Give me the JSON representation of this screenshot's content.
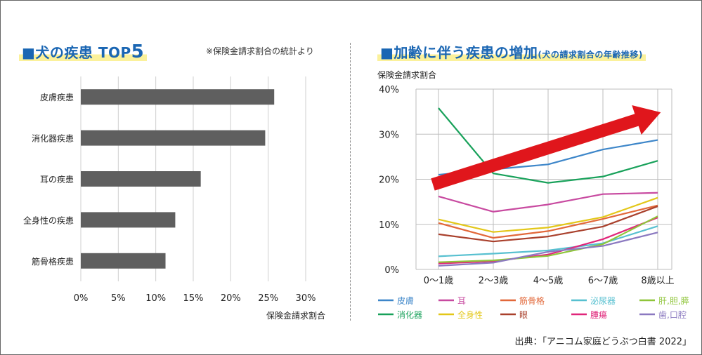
{
  "left_panel": {
    "title_prefix": "■犬の疾患 TOP",
    "title_rank": "5",
    "note": "※保険金請求割合の統計より"
  },
  "right_panel": {
    "title_main": "■加齢に伴う疾患の増加",
    "title_sub": "(犬の請求割合の年齢推移)"
  },
  "source": "出典：「アニコム家庭どうぶつ白書 2022」",
  "colors": {
    "title": "#1a66b3",
    "highlight": "#fbf19b",
    "bar": "#5f5f5f",
    "trend_arrow": "#e0161c"
  },
  "chart_data": [
    {
      "type": "bar",
      "orientation": "horizontal",
      "categories": [
        "皮膚疾患",
        "消化器疾患",
        "耳の疾患",
        "全身性の疾患",
        "筋骨格疾患"
      ],
      "values": [
        25.8,
        24.6,
        16.0,
        12.6,
        11.3
      ],
      "xlabel": "保険金請求割合",
      "xlim": [
        0,
        30
      ],
      "xticks": [
        "0%",
        "5%",
        "10%",
        "15%",
        "20%",
        "25%",
        "30%"
      ],
      "grid": true
    },
    {
      "type": "line",
      "ylabel": "保険金請求割合",
      "categories": [
        "0〜1歳",
        "2〜3歳",
        "4〜5歳",
        "6〜7歳",
        "8歳以上"
      ],
      "ylim": [
        0,
        40
      ],
      "yticks": [
        "0%",
        "10%",
        "20%",
        "30%",
        "40%"
      ],
      "grid": true,
      "legend_position": "bottom",
      "series": [
        {
          "name": "皮膚",
          "color": "#3d86c9",
          "values": [
            21.0,
            22.2,
            23.3,
            26.6,
            28.7
          ]
        },
        {
          "name": "消化器",
          "color": "#18a15a",
          "values": [
            35.8,
            21.3,
            19.2,
            20.6,
            24.1
          ]
        },
        {
          "name": "耳",
          "color": "#c84aa0",
          "values": [
            16.2,
            12.8,
            14.4,
            16.7,
            17.0
          ]
        },
        {
          "name": "全身性",
          "color": "#e3c718",
          "values": [
            11.1,
            8.3,
            9.3,
            11.6,
            15.9
          ]
        },
        {
          "name": "筋骨格",
          "color": "#e2683a",
          "values": [
            10.3,
            7.0,
            8.5,
            11.2,
            14.2
          ]
        },
        {
          "name": "眼",
          "color": "#a9402c",
          "values": [
            7.8,
            6.2,
            7.3,
            9.5,
            14.0
          ]
        },
        {
          "name": "泌尿器",
          "color": "#57c0d0",
          "values": [
            2.9,
            3.5,
            4.2,
            5.8,
            9.6
          ]
        },
        {
          "name": "腫瘍",
          "color": "#e0267a",
          "values": [
            1.3,
            1.8,
            3.3,
            6.7,
            11.5
          ]
        },
        {
          "name": "肝,胆,膵",
          "color": "#8fc53a",
          "values": [
            1.6,
            2.0,
            3.0,
            5.6,
            11.8
          ]
        },
        {
          "name": "歯,口腔",
          "color": "#8b79c0",
          "values": [
            0.8,
            1.5,
            3.9,
            5.2,
            8.2
          ]
        }
      ]
    }
  ]
}
